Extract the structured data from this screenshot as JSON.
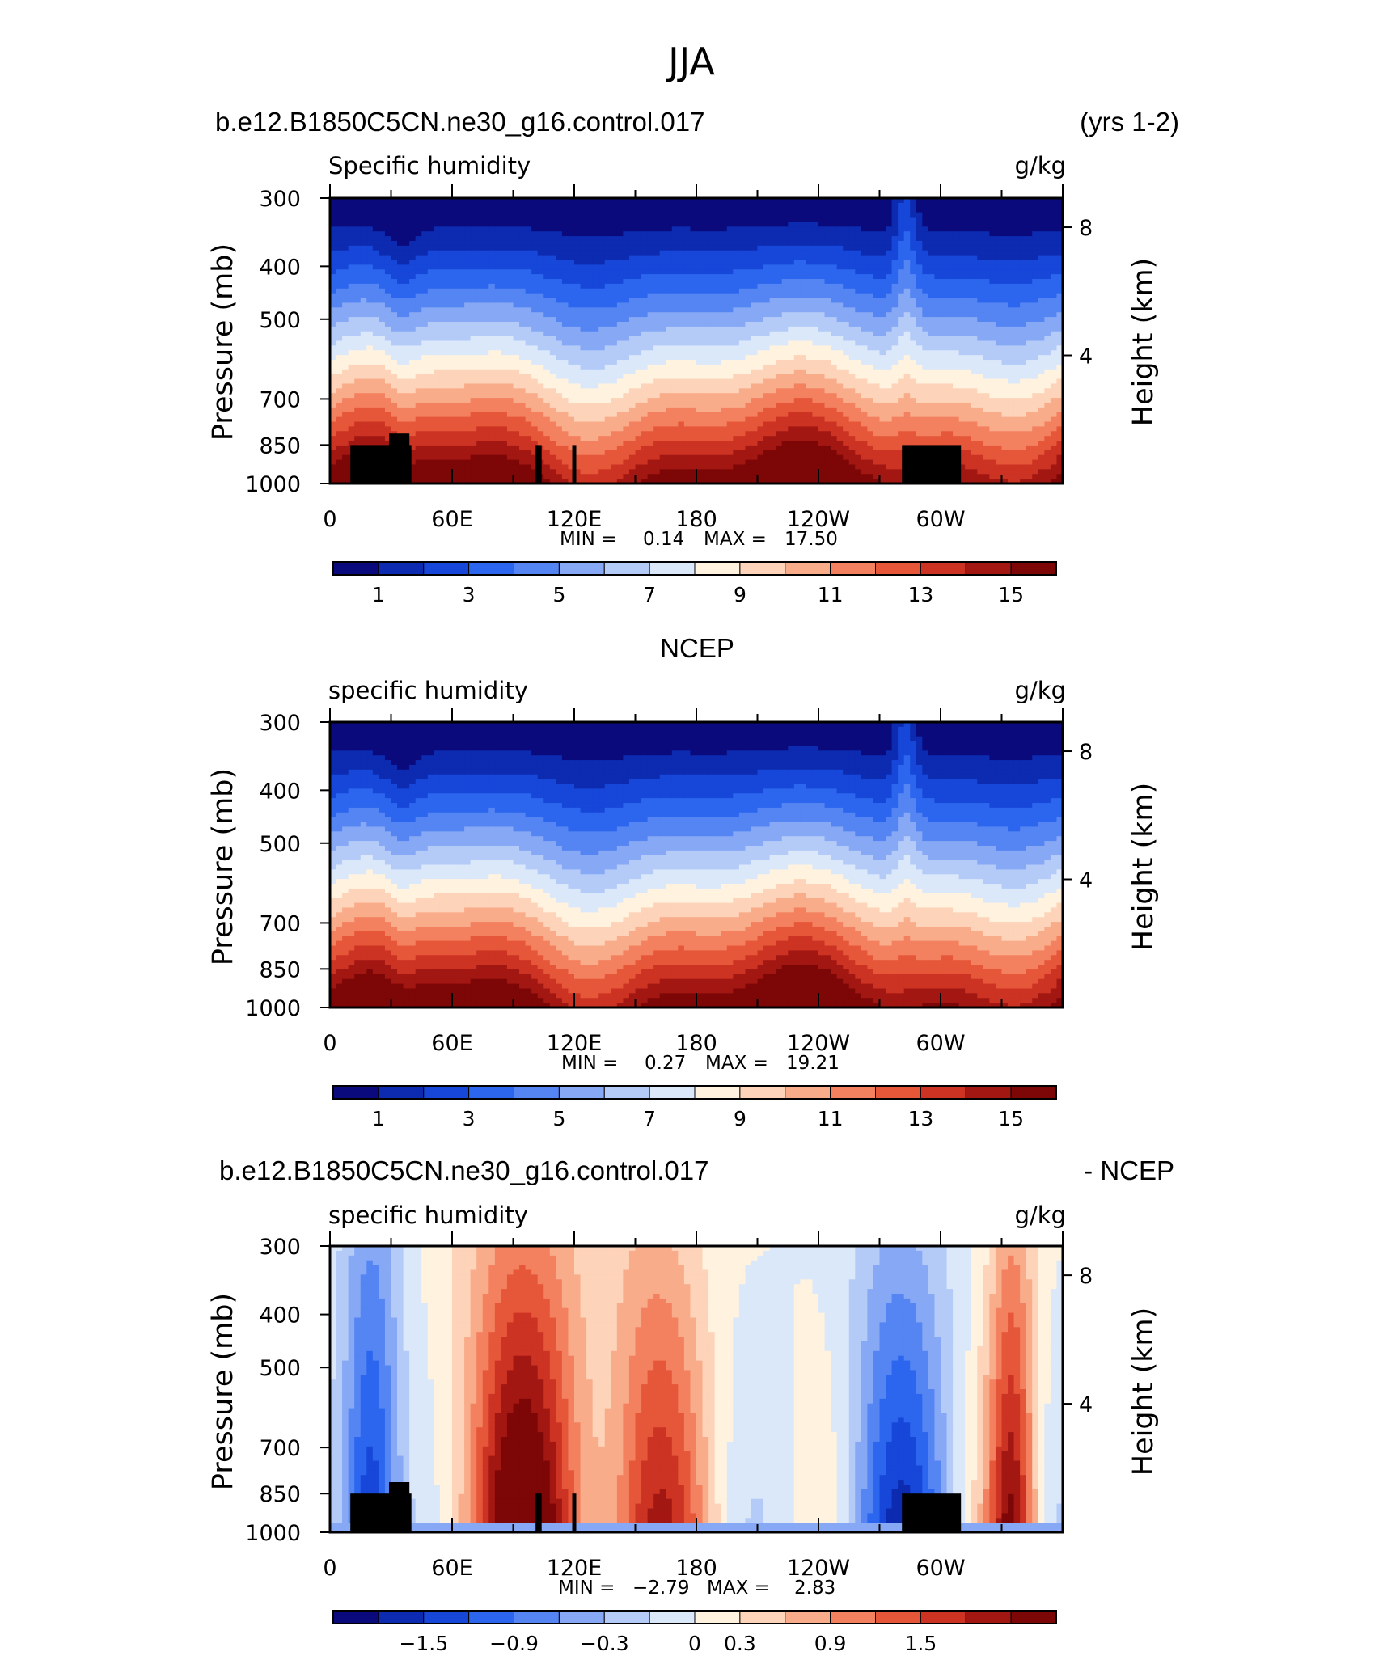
{
  "figure_title": "JJA",
  "chart_data": [
    {
      "type": "heatmap",
      "panel_id": "model",
      "header_left": "b.e12.B1850C5CN.ne30_g16.control.017",
      "header_right": "(yrs 1-2)",
      "field_label": "Specific humidity",
      "units": "g/kg",
      "ylabel": "Pressure (mb)",
      "ylabel_right": "Height (km)",
      "y_ticks": [
        "300",
        "400",
        "500",
        "700",
        "850",
        "1000"
      ],
      "y_right_ticks": [
        "8",
        "4"
      ],
      "x_ticks": [
        "0",
        "60E",
        "120E",
        "180",
        "120W",
        "60W"
      ],
      "x_range": [
        0,
        360
      ],
      "y_range_mb": [
        1000,
        300
      ],
      "min_label": "MIN =",
      "min_value": "0.14",
      "max_label": "MAX =",
      "max_value": "17.50",
      "colorbar_labels": [
        "1",
        "3",
        "5",
        "7",
        "9",
        "11",
        "13",
        "15"
      ],
      "colorbar_colors": [
        "#0a0a7d",
        "#0c2bb0",
        "#1747d9",
        "#2c66ee",
        "#5585f2",
        "#86a8f5",
        "#b4cbf8",
        "#dbe8fa",
        "#fff2df",
        "#fdd3b9",
        "#f9ac8a",
        "#f3805f",
        "#e6573a",
        "#cc3323",
        "#a31713",
        "#7d0707"
      ]
    },
    {
      "type": "heatmap",
      "panel_id": "ncep",
      "header_center": "NCEP",
      "field_label": "specific humidity",
      "units": "g/kg",
      "ylabel": "Pressure (mb)",
      "ylabel_right": "Height (km)",
      "y_ticks": [
        "300",
        "400",
        "500",
        "700",
        "850",
        "1000"
      ],
      "y_right_ticks": [
        "8",
        "4"
      ],
      "x_ticks": [
        "0",
        "60E",
        "120E",
        "180",
        "120W",
        "60W"
      ],
      "x_range": [
        0,
        360
      ],
      "y_range_mb": [
        1000,
        300
      ],
      "min_label": "MIN =",
      "min_value": "0.27",
      "max_label": "MAX =",
      "max_value": "19.21",
      "colorbar_labels": [
        "1",
        "3",
        "5",
        "7",
        "9",
        "11",
        "13",
        "15"
      ],
      "colorbar_colors": [
        "#0a0a7d",
        "#0c2bb0",
        "#1747d9",
        "#2c66ee",
        "#5585f2",
        "#86a8f5",
        "#b4cbf8",
        "#dbe8fa",
        "#fff2df",
        "#fdd3b9",
        "#f9ac8a",
        "#f3805f",
        "#e6573a",
        "#cc3323",
        "#a31713",
        "#7d0707"
      ]
    },
    {
      "type": "heatmap",
      "panel_id": "difference",
      "header_left": "b.e12.B1850C5CN.ne30_g16.control.017",
      "header_right": "- NCEP",
      "field_label": "specific humidity",
      "units": "g/kg",
      "ylabel": "Pressure (mb)",
      "ylabel_right": "Height (km)",
      "y_ticks": [
        "300",
        "400",
        "500",
        "700",
        "850",
        "1000"
      ],
      "y_right_ticks": [
        "8",
        "4"
      ],
      "x_ticks": [
        "0",
        "60E",
        "120E",
        "180",
        "120W",
        "60W"
      ],
      "x_range": [
        0,
        360
      ],
      "y_range_mb": [
        1000,
        300
      ],
      "min_label": "MIN =",
      "min_value": "−2.79",
      "max_label": "MAX =",
      "max_value": "2.83",
      "colorbar_labels": [
        "−1.5",
        "−0.9",
        "−0.3",
        "0",
        "0.3",
        "0.9",
        "1.5"
      ],
      "colorbar_colors": [
        "#0a0a7d",
        "#0c2bb0",
        "#1747d9",
        "#2c66ee",
        "#5585f2",
        "#86a8f5",
        "#b4cbf8",
        "#dbe8fa",
        "#fff2df",
        "#fdd3b9",
        "#f9ac8a",
        "#f3805f",
        "#e6573a",
        "#cc3323",
        "#a31713",
        "#7d0707"
      ]
    }
  ]
}
